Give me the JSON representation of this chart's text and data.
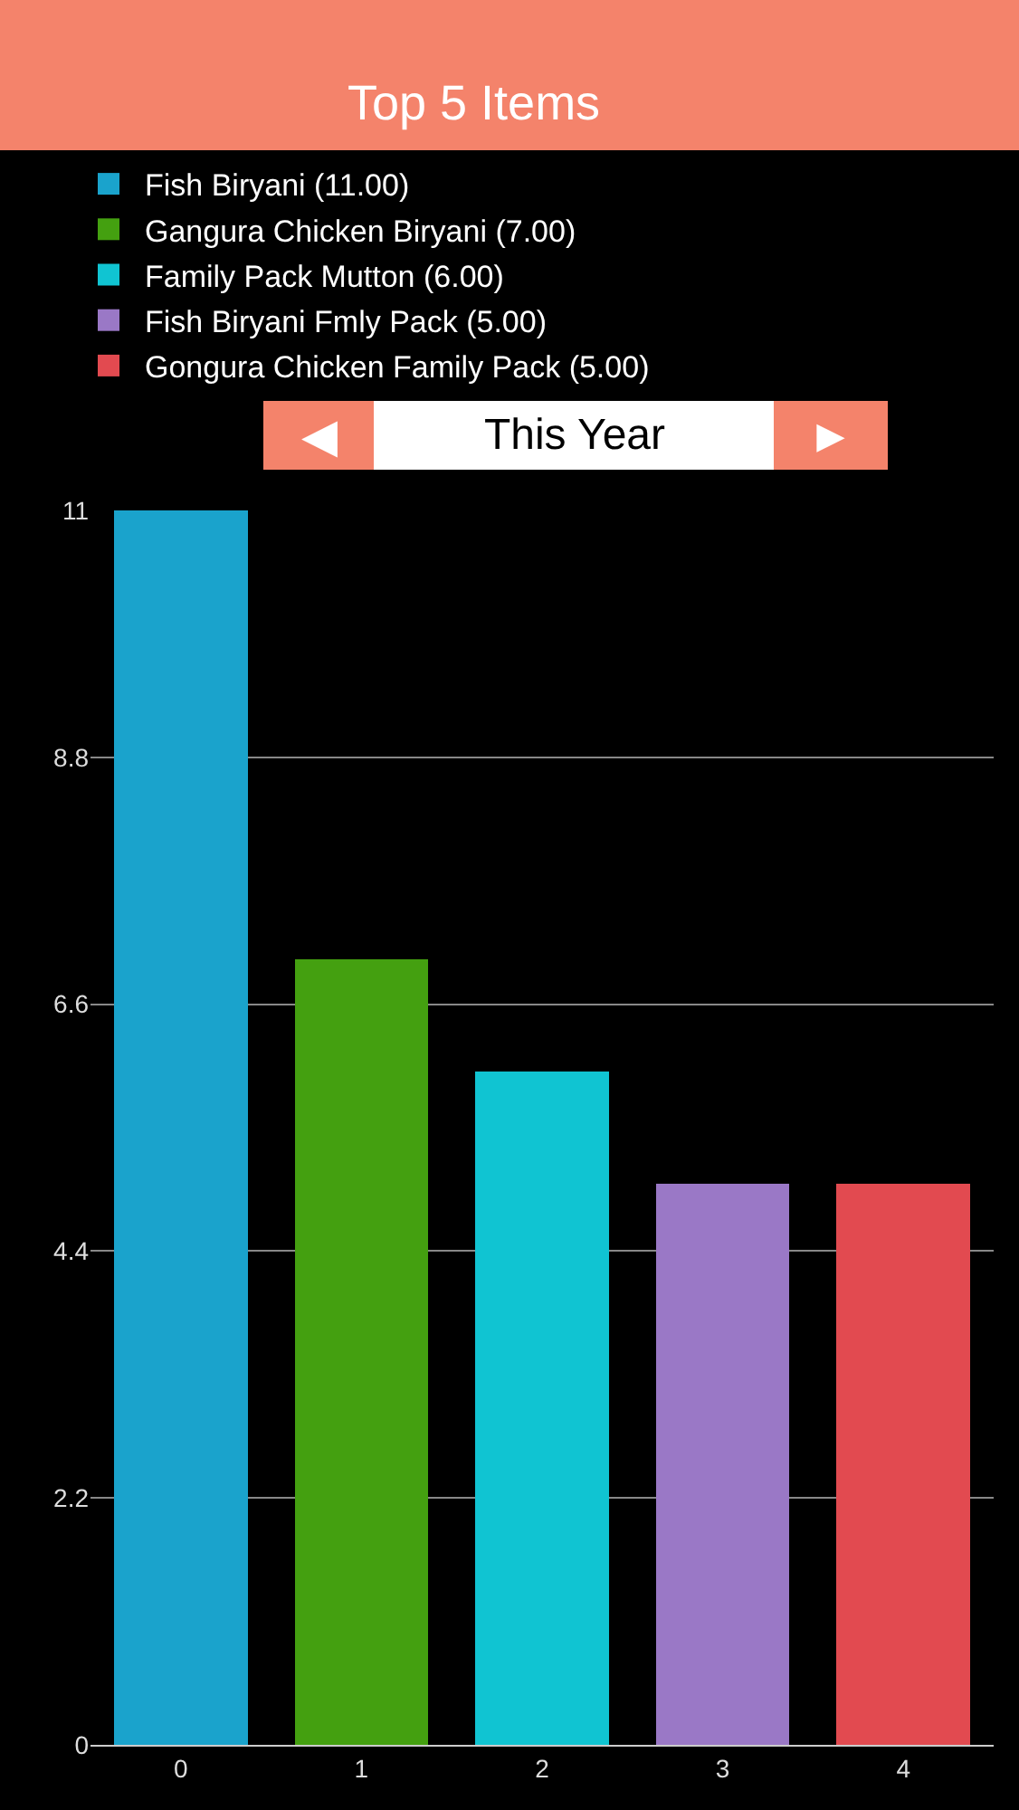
{
  "chart_data": {
    "type": "bar",
    "title": "Top 5 Items",
    "categories": [
      "0",
      "1",
      "2",
      "3",
      "4"
    ],
    "series": [
      {
        "name": "Fish Biryani (11.00)",
        "color": "#1aa3cc",
        "values": [
          11,
          null,
          null,
          null,
          null
        ]
      },
      {
        "name": "Gangura Chicken Biryani (7.00)",
        "color": "#44a010",
        "values": [
          null,
          7,
          null,
          null,
          null
        ]
      },
      {
        "name": "Family Pack Mutton (6.00)",
        "color": "#10c4d2",
        "values": [
          null,
          null,
          6,
          null,
          null
        ]
      },
      {
        "name": "Fish Biryani Fmly Pack (5.00)",
        "color": "#9a78c6",
        "values": [
          null,
          null,
          null,
          5,
          null
        ]
      },
      {
        "name": "Gongura Chicken Family Pack (5.00)",
        "color": "#e24a50",
        "values": [
          null,
          null,
          null,
          null,
          5
        ]
      }
    ],
    "stacked": true,
    "ylim": [
      0,
      11
    ],
    "yticks": [
      0,
      2.2,
      4.4,
      6.6,
      8.8,
      11
    ],
    "grid": "y",
    "legend": "top left",
    "annotations": [
      "◀",
      "This Year",
      "►"
    ]
  }
}
